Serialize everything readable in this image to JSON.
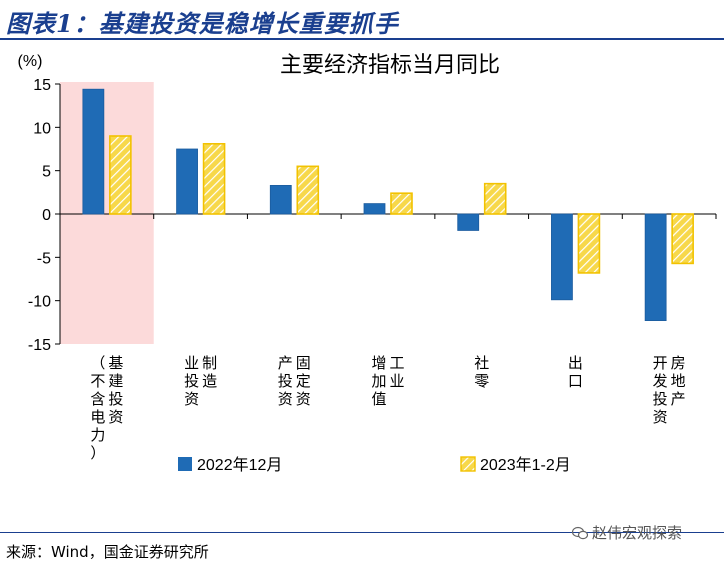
{
  "header": {
    "figure_title": "图表1：基建投资是稳增长重要抓手"
  },
  "footer": {
    "source": "来源：Wind，国金证券研究所"
  },
  "watermark": {
    "text": "赵伟宏观探索",
    "icon": "wechat-icon"
  },
  "chart_data": {
    "type": "bar",
    "title": "主要经济指标当月同比",
    "ylabel": "(%)",
    "xlabel": "",
    "ylim": [
      -15,
      15
    ],
    "yticks": [
      15,
      10,
      5,
      0,
      -5,
      -10,
      -15
    ],
    "grid": false,
    "legend_position": "bottom",
    "categories": [
      {
        "label": "基建投资",
        "sublabel": "（不含电力）"
      },
      {
        "label": "制造业投资",
        "sublabel": ""
      },
      {
        "label": "固定资产投资",
        "sublabel": ""
      },
      {
        "label": "工业增加值",
        "sublabel": ""
      },
      {
        "label": "社零",
        "sublabel": ""
      },
      {
        "label": "出口",
        "sublabel": ""
      },
      {
        "label": "房地产开发投资",
        "sublabel": ""
      }
    ],
    "series": [
      {
        "name": "2022年12月",
        "values": [
          14.4,
          7.5,
          3.3,
          1.2,
          -1.9,
          -9.9,
          -12.3
        ],
        "color": "#1f6bb5"
      },
      {
        "name": "2023年1-2月",
        "values": [
          9.0,
          8.1,
          5.5,
          2.4,
          3.5,
          -6.8,
          -5.7
        ],
        "color": "#f2c200"
      }
    ],
    "highlight": {
      "category_index": 0,
      "color": "#fcdada"
    }
  }
}
